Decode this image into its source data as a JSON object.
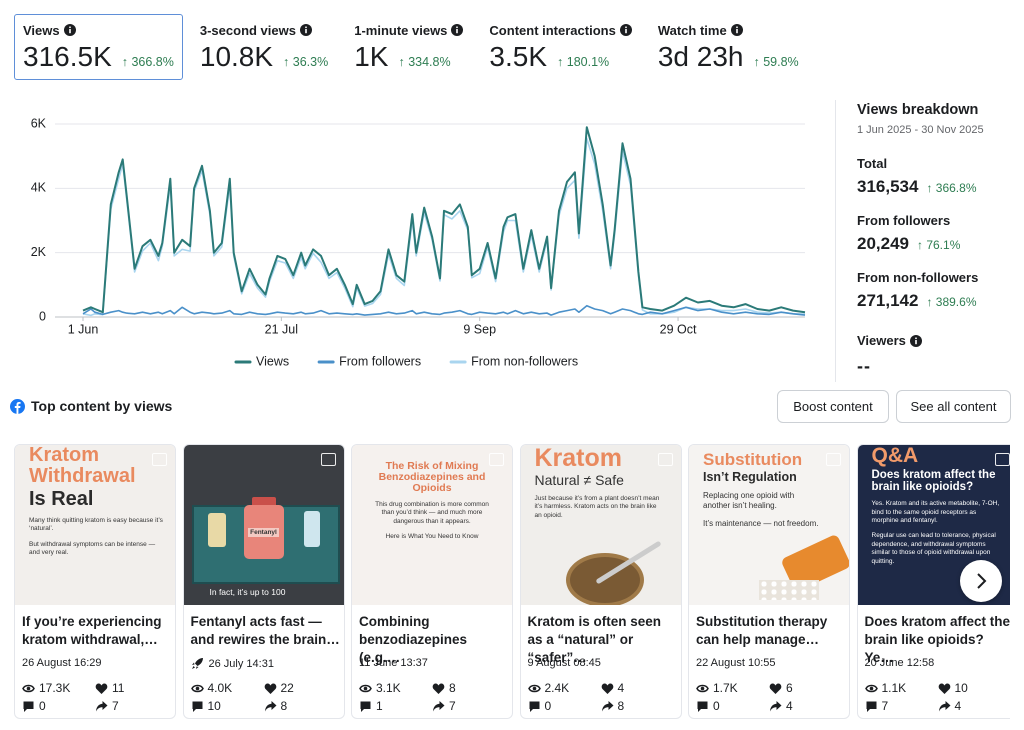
{
  "metrics": [
    {
      "label": "Views",
      "value": "316.5K",
      "change": "↑ 366.8%"
    },
    {
      "label": "3-second views",
      "value": "10.8K",
      "change": "↑ 36.3%"
    },
    {
      "label": "1-minute views",
      "value": "1K",
      "change": "↑ 334.8%"
    },
    {
      "label": "Content interactions",
      "value": "3.5K",
      "change": "↑ 180.1%"
    },
    {
      "label": "Watch time",
      "value": "3d 23h",
      "change": "↑ 59.8%"
    }
  ],
  "chart_data": {
    "type": "line",
    "x": [
      0,
      2,
      3,
      5,
      7,
      9,
      10,
      11,
      13,
      15,
      17,
      19,
      20,
      22,
      23,
      25,
      27,
      28,
      30,
      32,
      33,
      35,
      37,
      38,
      40,
      42,
      44,
      46,
      47,
      49,
      51,
      53,
      55,
      56,
      58,
      60,
      62,
      64,
      66,
      68,
      69,
      71,
      73,
      75,
      77,
      79,
      81,
      83,
      84,
      86,
      88,
      90,
      91,
      93,
      95,
      97,
      98,
      100,
      102,
      104,
      106,
      107,
      109,
      111,
      113,
      115,
      117,
      118,
      120,
      122,
      124,
      125,
      127,
      129,
      131,
      133,
      134,
      136,
      138,
      140,
      141,
      143,
      146,
      149,
      152,
      155,
      158,
      161,
      164,
      167,
      170,
      173,
      176,
      179,
      182
    ],
    "xlim": [
      0,
      182
    ],
    "xticks": [
      {
        "value": 0,
        "label": "1 Jun"
      },
      {
        "value": 50,
        "label": "21 Jul"
      },
      {
        "value": 100,
        "label": "9 Sep"
      },
      {
        "value": 150,
        "label": "29 Oct"
      }
    ],
    "ylim": [
      0,
      6000
    ],
    "yticks": [
      0,
      {
        "value": 2000,
        "label": "2K"
      },
      {
        "value": 4000,
        "label": "4K"
      },
      {
        "value": 6000,
        "label": "6K"
      }
    ],
    "grid": true,
    "series": [
      {
        "name": "Views",
        "color": "#2b7a78",
        "values": [
          200,
          300,
          250,
          150,
          3500,
          4500,
          4900,
          3800,
          1500,
          2200,
          2400,
          1900,
          2300,
          4300,
          2000,
          2400,
          2200,
          4000,
          4700,
          3300,
          2000,
          2300,
          4300,
          2000,
          800,
          1500,
          1000,
          700,
          1200,
          1900,
          1800,
          1300,
          2000,
          1600,
          2100,
          1900,
          1300,
          1500,
          1000,
          400,
          1000,
          400,
          500,
          800,
          2100,
          1300,
          1100,
          3200,
          2000,
          3400,
          2500,
          1200,
          3300,
          3200,
          3500,
          2800,
          1300,
          1500,
          2300,
          1200,
          2800,
          3100,
          3200,
          1500,
          2700,
          1500,
          2500,
          900,
          3300,
          4200,
          4500,
          2600,
          5900,
          5000,
          3500,
          1600,
          2700,
          5400,
          4300,
          1400,
          300,
          250,
          200,
          350,
          600,
          450,
          500,
          350,
          300,
          400,
          250,
          200,
          300,
          200,
          150
        ]
      },
      {
        "name": "From followers",
        "color": "#4a90c9",
        "values": [
          100,
          250,
          150,
          80,
          150,
          200,
          150,
          120,
          100,
          150,
          100,
          150,
          100,
          200,
          100,
          300,
          150,
          100,
          150,
          120,
          100,
          120,
          200,
          100,
          80,
          150,
          100,
          80,
          100,
          150,
          120,
          100,
          150,
          100,
          120,
          200,
          100,
          120,
          100,
          80,
          100,
          60,
          80,
          100,
          150,
          100,
          120,
          200,
          100,
          150,
          100,
          80,
          120,
          150,
          200,
          100,
          80,
          150,
          120,
          100,
          150,
          100,
          200,
          100,
          150,
          100,
          120,
          60,
          150,
          200,
          250,
          150,
          350,
          250,
          200,
          100,
          150,
          250,
          200,
          100,
          80,
          150,
          100,
          200,
          300,
          200,
          250,
          150,
          100,
          150,
          100,
          80,
          150,
          100,
          60
        ]
      },
      {
        "name": "From non-followers",
        "color": "#a9d5ef",
        "values": [
          100,
          50,
          100,
          70,
          3350,
          4300,
          4750,
          3680,
          1400,
          2050,
          2300,
          1750,
          2200,
          4100,
          1900,
          2100,
          2050,
          3900,
          4550,
          3180,
          1900,
          2180,
          4100,
          1900,
          720,
          1350,
          900,
          620,
          1100,
          1750,
          1680,
          1200,
          1850,
          1500,
          1980,
          1700,
          1200,
          1380,
          900,
          320,
          900,
          340,
          420,
          700,
          1950,
          1200,
          980,
          3000,
          1900,
          3250,
          2400,
          1120,
          3180,
          3050,
          3300,
          2700,
          1220,
          1350,
          2180,
          1100,
          2650,
          3000,
          3000,
          1400,
          2550,
          1400,
          2380,
          840,
          3150,
          4000,
          4250,
          2450,
          5550,
          4750,
          3300,
          1500,
          2550,
          5150,
          4100,
          1300,
          220,
          100,
          100,
          150,
          300,
          250,
          250,
          200,
          200,
          250,
          150,
          120,
          150,
          100,
          90
        ]
      }
    ]
  },
  "breakdown": {
    "title": "Views breakdown",
    "date_range": "1 Jun 2025 - 30 Nov 2025",
    "items": [
      {
        "label": "Total",
        "value": "316,534",
        "change": "↑ 366.8%"
      },
      {
        "label": "From followers",
        "value": "20,249",
        "change": "↑ 76.1%"
      },
      {
        "label": "From non-followers",
        "value": "271,142",
        "change": "↑ 389.6%"
      }
    ],
    "viewers_label": "Viewers",
    "viewers_value": "--"
  },
  "top_content": {
    "title": "Top content by views",
    "buttons": [
      "Boost content",
      "See all content"
    ],
    "cards": [
      {
        "image": {
          "headline": [
            "Kratom",
            "Withdrawal"
          ],
          "subhead": [
            "Is Real"
          ],
          "text": [
            "Many think quitting kratom is easy because it’s ‘natural’.",
            "But withdrawal symptoms can be intense — and very real."
          ]
        },
        "caption": "If you’re experiencing kratom withdrawal,…",
        "date": "26 August 16:29",
        "views": "17.3K",
        "likes": "11",
        "comments": "0",
        "shares": "7"
      },
      {
        "image": {
          "headline": [
            "Fentanyl"
          ],
          "subhead": [],
          "text": [
            "In fact, it’s up to 100"
          ]
        },
        "caption": "Fentanyl acts fast — and rewires the brain…",
        "date": "26 July 14:31",
        "views": "4.0K",
        "likes": "22",
        "comments": "10",
        "shares": "8"
      },
      {
        "image": {
          "headline": [
            "The Risk of Mixing Benzodiazepines and Opioids"
          ],
          "subhead": [],
          "text": [
            "This drug combination is more common than you’d think — and much more dangerous than it appears.",
            "Here is What You Need to Know"
          ]
        },
        "caption": "Combining benzodiazepines (e.g.…",
        "date": "11 June 13:37",
        "views": "3.1K",
        "likes": "8",
        "comments": "1",
        "shares": "7"
      },
      {
        "image": {
          "headline": [
            "Kratom"
          ],
          "subhead": [
            "Natural ≠ Safe"
          ],
          "text": [
            "Just because it’s from a plant doesn’t mean it’s harmless. Kratom acts on the brain like an opioid."
          ]
        },
        "caption": "Kratom is often seen as a “natural” or “safer”…",
        "date": "9 August 08:45",
        "views": "2.4K",
        "likes": "4",
        "comments": "0",
        "shares": "8"
      },
      {
        "image": {
          "headline": [
            "Substitution"
          ],
          "subhead": [
            "Isn’t Regulation"
          ],
          "text": [
            "Replacing one opioid with another isn’t healing.",
            "It’s maintenance — not freedom."
          ]
        },
        "caption": "Substitution therapy can help manage…",
        "date": "22 August 10:55",
        "views": "1.7K",
        "likes": "6",
        "comments": "0",
        "shares": "4"
      },
      {
        "image": {
          "headline": [
            "Q&A"
          ],
          "subhead": [
            "Does kratom affect the brain like opioids?"
          ],
          "text": [
            "Yes. Kratom and its active metabolite, 7-OH, bind to the same opioid receptors as morphine and fentanyl.",
            "Regular use can lead to tolerance, physical dependence, and withdrawal symptoms similar to those of opioid withdrawal upon quitting."
          ]
        },
        "caption": "Does kratom affect the brain like opioids? Ye…",
        "date": "20 June 12:58",
        "views": "1.1K",
        "likes": "10",
        "comments": "7",
        "shares": "4"
      }
    ]
  }
}
